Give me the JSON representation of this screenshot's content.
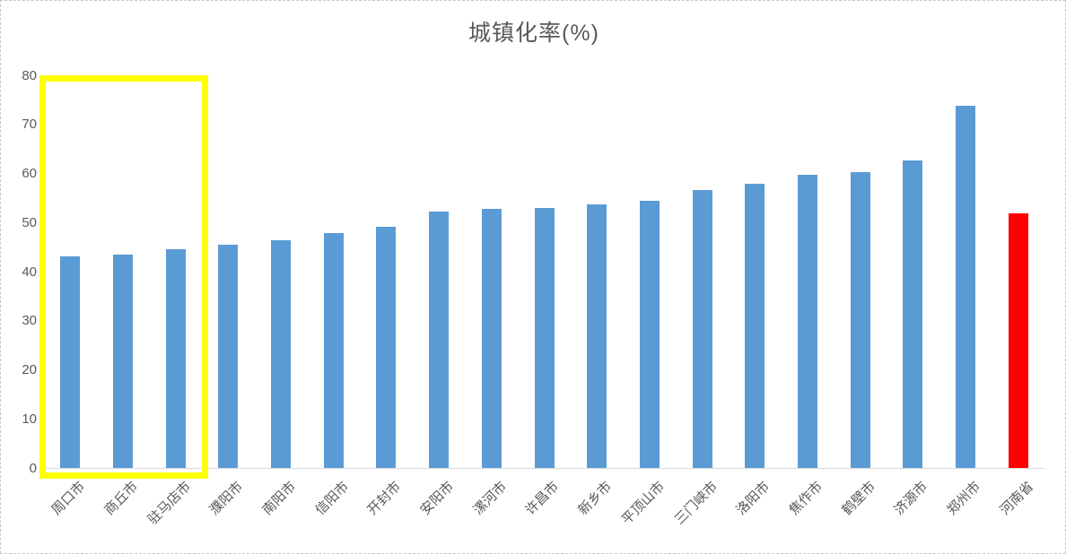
{
  "chart_data": {
    "type": "bar",
    "title": "城镇化率(%)",
    "categories": [
      "周口市",
      "商丘市",
      "驻马店市",
      "濮阳市",
      "南阳市",
      "信阳市",
      "开封市",
      "安阳市",
      "漯河市",
      "许昌市",
      "新乡市",
      "平顶山市",
      "三门峡市",
      "洛阳市",
      "焦作市",
      "鹤壁市",
      "济源市",
      "郑州市",
      "河南省"
    ],
    "values": [
      43.1,
      43.5,
      44.5,
      45.5,
      46.4,
      47.8,
      49.1,
      52.2,
      52.8,
      53.0,
      53.7,
      54.5,
      56.7,
      57.9,
      59.7,
      60.3,
      62.6,
      73.8,
      51.9
    ],
    "xlabel": "",
    "ylabel": "",
    "ylim": [
      0,
      80
    ],
    "yticks": [
      0,
      10,
      20,
      30,
      40,
      50,
      60,
      70,
      80
    ],
    "grid": false,
    "legend_position": "none",
    "bar_color": "#5B9BD5",
    "highlight": {
      "category": "河南省",
      "color": "#FF0000"
    },
    "annotation_box": {
      "shape": "rectangle",
      "color": "#FFFF00",
      "covers_categories": [
        "周口市",
        "商丘市",
        "驻马店市"
      ]
    }
  },
  "colors": {
    "axis_text": "#595959",
    "title_text": "#595959",
    "axis_line": "#D9D9D9",
    "background": "#FFFFFF",
    "frame_border": "#C9C9C9"
  }
}
